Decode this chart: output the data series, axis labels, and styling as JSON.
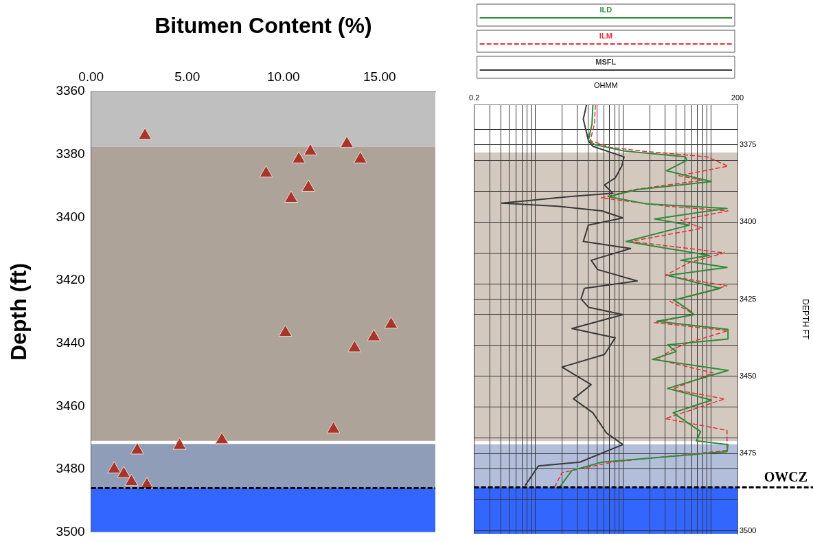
{
  "chart_data": [
    {
      "type": "scatter",
      "xlabel": "Bitumen Content (%)",
      "ylabel": "Depth (ft)",
      "xlim": [
        0,
        17.9
      ],
      "ylim": [
        3500,
        3360
      ],
      "xticks": [
        {
          "value": 0,
          "label": "0.00"
        },
        {
          "value": 5,
          "label": "5.00"
        },
        {
          "value": 10,
          "label": "10.00"
        },
        {
          "value": 15,
          "label": "15.00"
        }
      ],
      "yticks": [
        {
          "value": 3360,
          "label": "3360"
        },
        {
          "value": 3380,
          "label": "3380"
        },
        {
          "value": 3400,
          "label": "3400"
        },
        {
          "value": 3420,
          "label": "3420"
        },
        {
          "value": 3440,
          "label": "3440"
        },
        {
          "value": 3460,
          "label": "3460"
        },
        {
          "value": 3480,
          "label": "3480"
        },
        {
          "value": 3500,
          "label": "3500"
        }
      ],
      "marker": "triangle",
      "grid": false,
      "series": [
        {
          "color": "#a8352b",
          "x": [
            2.8,
            11.4,
            13.3,
            10.8,
            14.0,
            9.1,
            11.3,
            10.4,
            10.1,
            15.6,
            14.7,
            13.7,
            12.6,
            6.8,
            4.6,
            2.4,
            1.2,
            1.7,
            2.1,
            2.9
          ],
          "values": [
            3374,
            3379,
            3376.6,
            3381.5,
            3381.5,
            3386,
            3390.5,
            3394,
            3436.6,
            3434,
            3438,
            3441.5,
            3467.3,
            3470.7,
            3472.5,
            3474,
            3480,
            3481.5,
            3484,
            3485
          ]
        }
      ],
      "bands": [
        {
          "axis": "y",
          "from": 3360,
          "to": 3377.5,
          "color": "#bfbfbf"
        },
        {
          "axis": "y",
          "from": 3377.5,
          "to": 3471,
          "color": "#ada398"
        },
        {
          "axis": "y",
          "from": 3472,
          "to": 3486,
          "color": "#909db9"
        },
        {
          "axis": "y",
          "from": 3486,
          "to": 3500,
          "color": "#3366ff"
        }
      ],
      "ref_lines": [
        {
          "axis": "y",
          "value": 3486,
          "line_style": "dashed",
          "color": "#000000"
        }
      ]
    },
    {
      "type": "line",
      "xlabel": "OHMM",
      "ylabel": "DEPTH FT",
      "log": "x",
      "xlim": [
        0.2,
        200
      ],
      "ylim": [
        3501,
        3362
      ],
      "xticks": [
        {
          "value": 0.2,
          "label": "0.2"
        },
        {
          "value": 0.3,
          "label": null
        },
        {
          "value": 0.4,
          "label": null
        },
        {
          "value": 0.5,
          "label": null
        },
        {
          "value": 0.6,
          "label": null
        },
        {
          "value": 0.7,
          "label": null
        },
        {
          "value": 0.8,
          "label": null
        },
        {
          "value": 0.9,
          "label": null
        },
        {
          "value": 1,
          "label": null
        },
        {
          "value": 2,
          "label": null
        },
        {
          "value": 3,
          "label": null
        },
        {
          "value": 4,
          "label": null
        },
        {
          "value": 5,
          "label": null
        },
        {
          "value": 6,
          "label": null
        },
        {
          "value": 7,
          "label": null
        },
        {
          "value": 8,
          "label": null
        },
        {
          "value": 9,
          "label": null
        },
        {
          "value": 10,
          "label": null
        },
        {
          "value": 20,
          "label": null
        },
        {
          "value": 30,
          "label": null
        },
        {
          "value": 40,
          "label": null
        },
        {
          "value": 50,
          "label": null
        },
        {
          "value": 60,
          "label": null
        },
        {
          "value": 70,
          "label": null
        },
        {
          "value": 80,
          "label": null
        },
        {
          "value": 90,
          "label": null
        },
        {
          "value": 100,
          "label": null
        },
        {
          "value": 200,
          "label": "200"
        }
      ],
      "yticks": [
        {
          "value": 3370,
          "label": null
        },
        {
          "value": 3375,
          "label": "3375"
        },
        {
          "value": 3380,
          "label": null
        },
        {
          "value": 3390,
          "label": null
        },
        {
          "value": 3400,
          "label": "3400"
        },
        {
          "value": 3410,
          "label": null
        },
        {
          "value": 3420,
          "label": null
        },
        {
          "value": 3425,
          "label": "3425"
        },
        {
          "value": 3430,
          "label": null
        },
        {
          "value": 3440,
          "label": null
        },
        {
          "value": 3450,
          "label": "3450"
        },
        {
          "value": 3460,
          "label": null
        },
        {
          "value": 3470,
          "label": null
        },
        {
          "value": 3475,
          "label": "3475"
        },
        {
          "value": 3480,
          "label": null
        },
        {
          "value": 3490,
          "label": null
        },
        {
          "value": 3500,
          "label": "3500"
        }
      ],
      "grid": true,
      "legend": "top",
      "marker": "none",
      "series": [
        {
          "name": "ILD",
          "color": "#2e8b3a",
          "line_style": "solid",
          "x": [
            4.5,
            4.4,
            4.0,
            4.8,
            10.2,
            51,
            53,
            31,
            101,
            14.4,
            6.8,
            18,
            152,
            22.8,
            57,
            10.8,
            32,
            96,
            45,
            152,
            32,
            127,
            38,
            57,
            64,
            24,
            156,
            156,
            32,
            40,
            21.5,
            156,
            32,
            101,
            37,
            76,
            68,
            156,
            152,
            5.7,
            2.6,
            1.8
          ],
          "values": [
            3362.1,
            3368.2,
            3373.6,
            3375,
            3377,
            3378.9,
            3380,
            3383.4,
            3386.9,
            3389.5,
            3391.8,
            3394.1,
            3395.6,
            3399,
            3401,
            3406.3,
            3408.6,
            3410.8,
            3412.4,
            3414.7,
            3417.3,
            3421.5,
            3425.3,
            3428.7,
            3430,
            3432.2,
            3434.8,
            3437.9,
            3439.8,
            3442,
            3444.5,
            3448.1,
            3453.9,
            3457.7,
            3461.8,
            3467.9,
            3470.9,
            3472.1,
            3474.4,
            3477.8,
            3480.5,
            3486.6
          ]
        },
        {
          "name": "ILM",
          "color": "#e8303a",
          "line_style": "dashed",
          "x": [
            4.8,
            4.7,
            4.2,
            7.2,
            16,
            90,
            156,
            43,
            80,
            13.2,
            5.6,
            32,
            156,
            45,
            80,
            12.1,
            143,
            57,
            30,
            152,
            34,
            51,
            64,
            22.6,
            156,
            57,
            38,
            24,
            106,
            36,
            143,
            30,
            152,
            152,
            7.5,
            2.0,
            1.6
          ],
          "values": [
            3362.1,
            3368.2,
            3373.6,
            3375.8,
            3377,
            3378.9,
            3381.9,
            3385,
            3386.5,
            3389.5,
            3392.2,
            3394.9,
            3396.4,
            3399.4,
            3402,
            3406.3,
            3410,
            3413.1,
            3417.3,
            3420.7,
            3425.7,
            3428.3,
            3430,
            3432.6,
            3435.2,
            3439,
            3441,
            3444.5,
            3448.9,
            3454.2,
            3457.3,
            3463.7,
            3467.5,
            3474,
            3477.8,
            3481.2,
            3486.6
          ]
        },
        {
          "name": "MSFL",
          "color": "#3a3a3a",
          "line_style": "solid",
          "x": [
            3.8,
            3.5,
            4.0,
            4.5,
            10.2,
            9.6,
            8.1,
            6.1,
            7.6,
            2.4,
            0.41,
            1.8,
            5.7,
            9.9,
            4.0,
            3.5,
            12.1,
            4.3,
            5.1,
            14.4,
            3.6,
            3.3,
            4.0,
            9.9,
            2.6,
            8.1,
            6.1,
            2.0,
            4.3,
            2.7,
            4.5,
            6.4,
            9.9,
            3.2,
            1.08,
            0.76
          ],
          "values": [
            3362.1,
            3366.7,
            3373.6,
            3375.5,
            3378.9,
            3381.9,
            3385.7,
            3388,
            3390.7,
            3391.8,
            3393.9,
            3394.9,
            3396.4,
            3398.7,
            3401,
            3406.3,
            3408.6,
            3412.4,
            3415.4,
            3419.1,
            3421.5,
            3424.9,
            3427.6,
            3430,
            3434.5,
            3437.5,
            3442.9,
            3447,
            3452.7,
            3457.3,
            3461.8,
            3468.3,
            3472.1,
            3477.8,
            3479,
            3485.4
          ]
        }
      ],
      "bands": [
        {
          "axis": "y",
          "from": 3377.5,
          "to": 3471,
          "color": "#d3c9bf"
        },
        {
          "axis": "y",
          "from": 3472,
          "to": 3486,
          "color": "#b3bedb"
        },
        {
          "axis": "y",
          "from": 3486,
          "to": 3501,
          "color": "#3366ff"
        }
      ],
      "ref_lines": [
        {
          "axis": "y",
          "value": 3486,
          "label": "OWCZ",
          "line_style": "dashed",
          "color": "#000000"
        }
      ]
    }
  ]
}
